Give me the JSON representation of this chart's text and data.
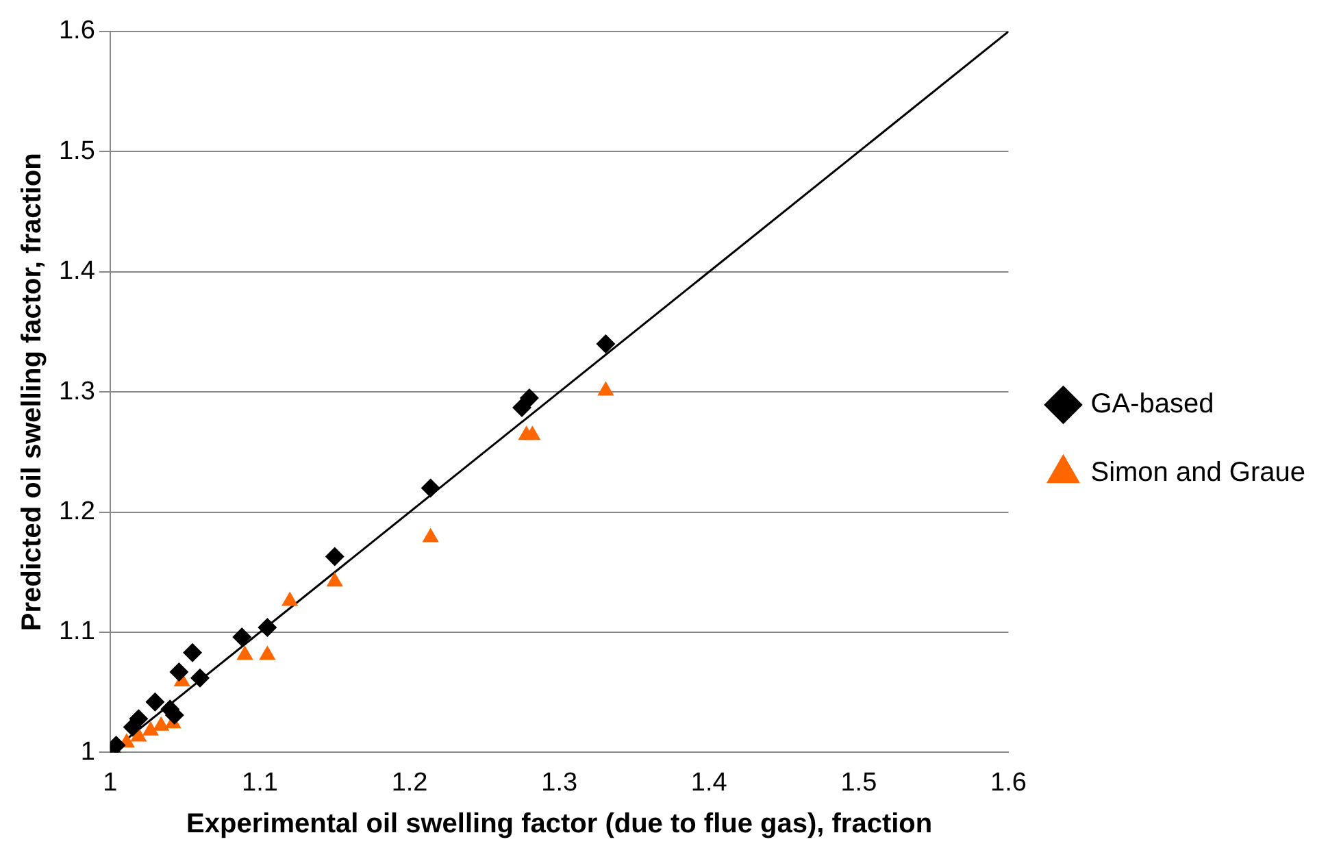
{
  "chart_data": {
    "type": "scatter",
    "xlabel": "Experimental oil swelling factor (due to flue gas), fraction",
    "ylabel": "Predicted oil swelling factor, fraction",
    "xlim": [
      1,
      1.6
    ],
    "ylim": [
      1,
      1.6
    ],
    "xticks": [
      {
        "value": 1,
        "label": "1"
      },
      1.1,
      1.2,
      1.3,
      1.4,
      1.5,
      1.6
    ],
    "yticks": [
      {
        "value": 1,
        "label": "1"
      },
      1.1,
      1.2,
      1.3,
      1.4,
      1.5,
      1.6
    ],
    "grid": "y",
    "legend": "right",
    "series": [
      {
        "name": "GA-based",
        "color": "#000000",
        "marker": "diamond",
        "x": [
          1.331,
          1.28,
          1.275,
          1.214,
          1.15,
          1.105,
          1.088,
          1.055,
          1.046,
          1.06,
          1.03,
          1.04,
          1.043,
          1.019,
          1.015,
          1.004,
          1.001
        ],
        "values": [
          1.34,
          1.295,
          1.287,
          1.22,
          1.163,
          1.104,
          1.096,
          1.083,
          1.067,
          1.062,
          1.042,
          1.036,
          1.031,
          1.028,
          1.021,
          1.006,
          1.0
        ]
      },
      {
        "name": "Simon and Graue",
        "color": "#ff6600",
        "marker": "triangle",
        "x": [
          1.331,
          1.278,
          1.282,
          1.214,
          1.15,
          1.12,
          1.105,
          1.09,
          1.048,
          1.042,
          1.034,
          1.027,
          1.019,
          1.011
        ],
        "values": [
          1.301,
          1.264,
          1.264,
          1.179,
          1.142,
          1.126,
          1.081,
          1.081,
          1.059,
          1.024,
          1.022,
          1.018,
          1.013,
          1.008
        ]
      },
      {
        "type": "line",
        "color": "#000000",
        "marker": "none",
        "x": [
          1,
          1.6
        ],
        "values": [
          1,
          1.6
        ]
      }
    ]
  }
}
